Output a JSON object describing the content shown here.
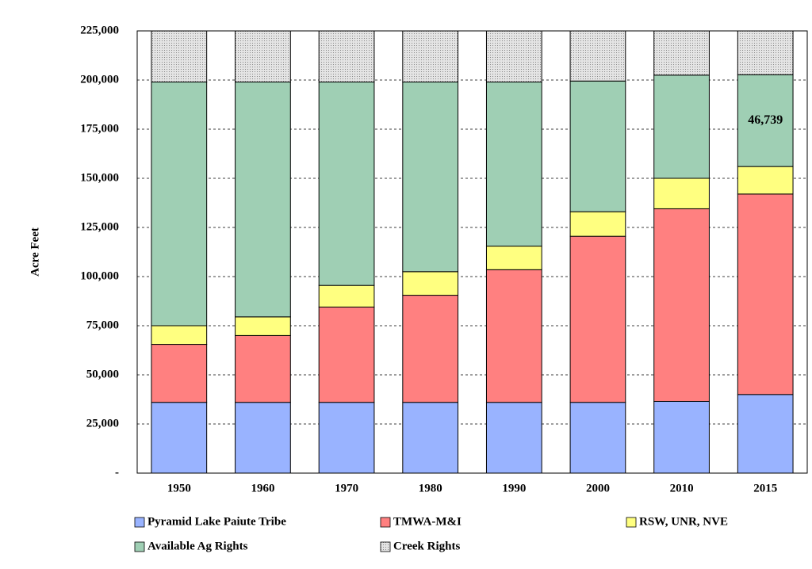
{
  "chart_data": {
    "type": "stacked_bar",
    "y_label": "Acre Feet",
    "categories": [
      "1950",
      "1960",
      "1970",
      "1980",
      "1990",
      "2000",
      "2010",
      "2015"
    ],
    "series": [
      {
        "name": "Pyramid Lake Paiute Tribe",
        "color": "#99b3ff",
        "values": [
          36000,
          36000,
          36000,
          36000,
          36000,
          36000,
          36500,
          40000
        ]
      },
      {
        "name": "TMWA-M&I",
        "color": "#ff8080",
        "values": [
          29500,
          34000,
          48500,
          54500,
          67500,
          84500,
          98000,
          102000
        ]
      },
      {
        "name": "RSW, UNR, NVE",
        "color": "#ffff80",
        "values": [
          9500,
          9500,
          11000,
          12000,
          12000,
          12500,
          15500,
          14000
        ]
      },
      {
        "name": "Available Ag Rights",
        "color": "#9fcfb4",
        "values": [
          124000,
          119500,
          103500,
          96500,
          83500,
          66500,
          52500,
          46739
        ],
        "value_labels": [
          null,
          null,
          null,
          null,
          null,
          null,
          null,
          "46,739"
        ]
      },
      {
        "name": "Creek Rights",
        "color": "#d9d9d9",
        "values": [
          26000,
          26000,
          26000,
          26000,
          26000,
          25500,
          22500,
          22261
        ]
      }
    ],
    "ylim": [
      0,
      225000
    ],
    "yticks": [
      {
        "value": 0,
        "label": "-"
      },
      {
        "value": 25000,
        "label": "25,000"
      },
      {
        "value": 50000,
        "label": "50,000"
      },
      {
        "value": 75000,
        "label": "75,000"
      },
      {
        "value": 100000,
        "label": "100,000"
      },
      {
        "value": 125000,
        "label": "125,000"
      },
      {
        "value": 150000,
        "label": "150,000"
      },
      {
        "value": 175000,
        "label": "175,000"
      },
      {
        "value": 200000,
        "label": "200,000"
      },
      {
        "value": 225000,
        "label": "225,000"
      }
    ],
    "grid": true
  }
}
